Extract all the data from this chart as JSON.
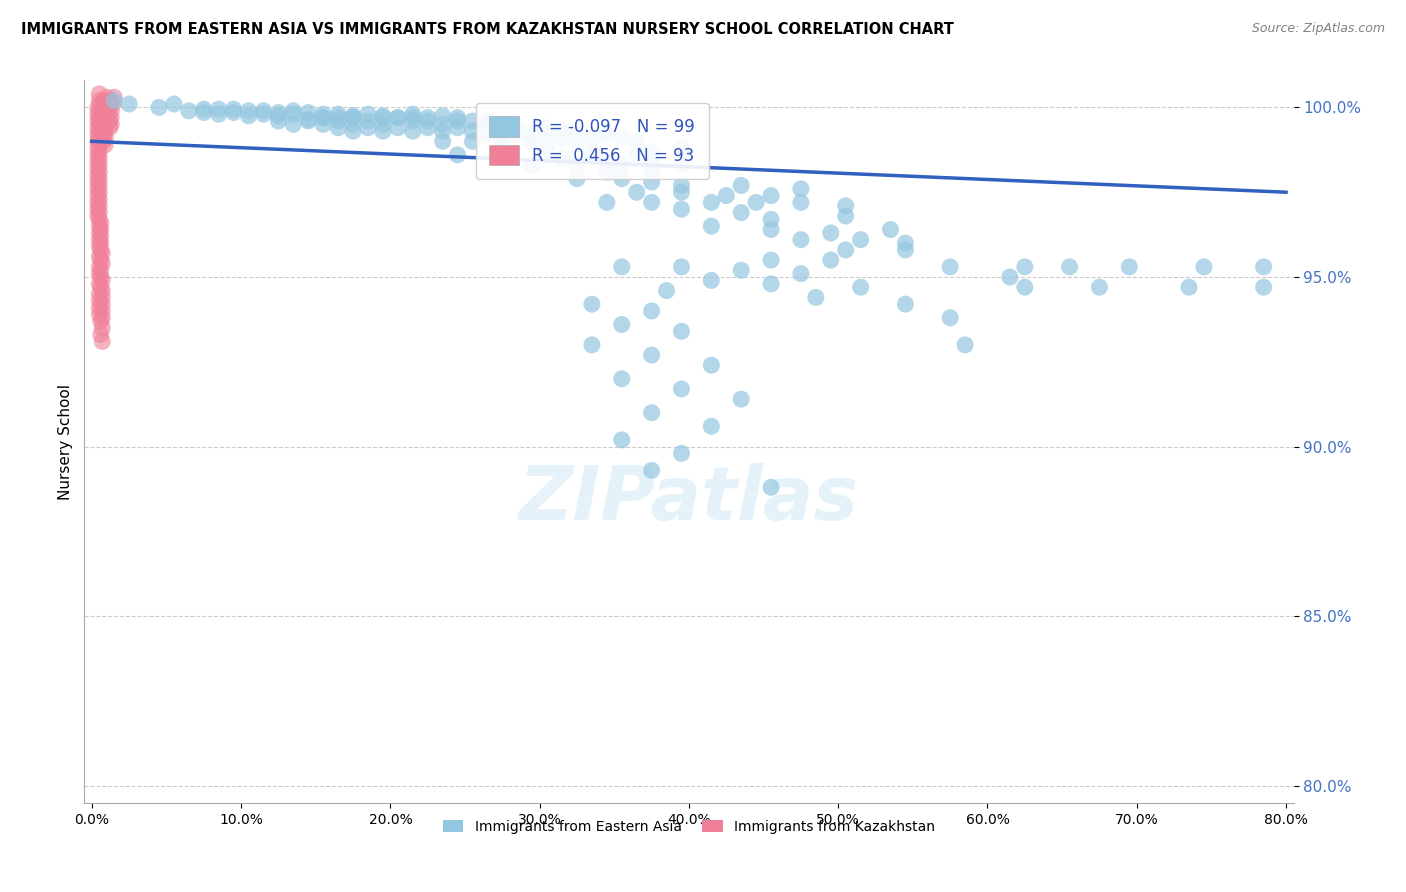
{
  "title": "IMMIGRANTS FROM EASTERN ASIA VS IMMIGRANTS FROM KAZAKHSTAN NURSERY SCHOOL CORRELATION CHART",
  "source": "Source: ZipAtlas.com",
  "ylabel": "Nursery School",
  "legend_label1": "Immigrants from Eastern Asia",
  "legend_label2": "Immigrants from Kazakhstan",
  "R1": -0.097,
  "N1": 99,
  "R2": 0.456,
  "N2": 93,
  "color_blue": "#93C6E0",
  "color_pink": "#F08098",
  "trendline_color": "#3060C0",
  "xlim": [
    -0.005,
    0.805
  ],
  "ylim": [
    0.795,
    1.008
  ],
  "xtick_labels": [
    "0.0%",
    "10.0%",
    "20.0%",
    "30.0%",
    "40.0%",
    "50.0%",
    "60.0%",
    "70.0%",
    "80.0%"
  ],
  "ytick_labels": [
    "80.0%",
    "85.0%",
    "90.0%",
    "95.0%",
    "100.0%"
  ],
  "ytick_values": [
    0.8,
    0.85,
    0.9,
    0.95,
    1.0
  ],
  "xtick_values": [
    0.0,
    0.1,
    0.2,
    0.3,
    0.4,
    0.5,
    0.6,
    0.7,
    0.8
  ],
  "watermark": "ZIPatlas",
  "trendline_x": [
    0.0,
    0.8
  ],
  "trendline_y": [
    0.99,
    0.975
  ],
  "blue_dots": [
    [
      0.015,
      1.002
    ],
    [
      0.025,
      1.001
    ],
    [
      0.055,
      1.001
    ],
    [
      0.045,
      1.0
    ],
    [
      0.075,
      0.9995
    ],
    [
      0.085,
      0.9995
    ],
    [
      0.095,
      0.9995
    ],
    [
      0.065,
      0.999
    ],
    [
      0.105,
      0.999
    ],
    [
      0.075,
      0.9985
    ],
    [
      0.115,
      0.999
    ],
    [
      0.125,
      0.9985
    ],
    [
      0.135,
      0.999
    ],
    [
      0.085,
      0.998
    ],
    [
      0.095,
      0.9985
    ],
    [
      0.115,
      0.998
    ],
    [
      0.145,
      0.9985
    ],
    [
      0.155,
      0.998
    ],
    [
      0.105,
      0.9975
    ],
    [
      0.125,
      0.9975
    ],
    [
      0.135,
      0.998
    ],
    [
      0.165,
      0.998
    ],
    [
      0.175,
      0.9975
    ],
    [
      0.185,
      0.998
    ],
    [
      0.155,
      0.997
    ],
    [
      0.165,
      0.997
    ],
    [
      0.175,
      0.997
    ],
    [
      0.195,
      0.9975
    ],
    [
      0.205,
      0.997
    ],
    [
      0.215,
      0.998
    ],
    [
      0.145,
      0.9965
    ],
    [
      0.155,
      0.997
    ],
    [
      0.175,
      0.997
    ],
    [
      0.195,
      0.997
    ],
    [
      0.215,
      0.997
    ],
    [
      0.225,
      0.997
    ],
    [
      0.235,
      0.9975
    ],
    [
      0.245,
      0.997
    ],
    [
      0.125,
      0.996
    ],
    [
      0.145,
      0.996
    ],
    [
      0.165,
      0.996
    ],
    [
      0.185,
      0.996
    ],
    [
      0.205,
      0.997
    ],
    [
      0.225,
      0.996
    ],
    [
      0.245,
      0.996
    ],
    [
      0.265,
      0.996
    ],
    [
      0.135,
      0.995
    ],
    [
      0.155,
      0.995
    ],
    [
      0.175,
      0.995
    ],
    [
      0.195,
      0.995
    ],
    [
      0.215,
      0.996
    ],
    [
      0.235,
      0.995
    ],
    [
      0.255,
      0.996
    ],
    [
      0.275,
      0.995
    ],
    [
      0.165,
      0.994
    ],
    [
      0.185,
      0.994
    ],
    [
      0.205,
      0.994
    ],
    [
      0.225,
      0.994
    ],
    [
      0.245,
      0.994
    ],
    [
      0.265,
      0.995
    ],
    [
      0.285,
      0.994
    ],
    [
      0.305,
      0.994
    ],
    [
      0.175,
      0.993
    ],
    [
      0.195,
      0.993
    ],
    [
      0.215,
      0.993
    ],
    [
      0.235,
      0.993
    ],
    [
      0.255,
      0.993
    ],
    [
      0.275,
      0.993
    ],
    [
      0.295,
      0.993
    ],
    [
      0.315,
      0.993
    ],
    [
      0.265,
      0.992
    ],
    [
      0.285,
      0.992
    ],
    [
      0.305,
      0.992
    ],
    [
      0.325,
      0.992
    ],
    [
      0.345,
      0.992
    ],
    [
      0.275,
      0.991
    ],
    [
      0.295,
      0.991
    ],
    [
      0.315,
      0.991
    ],
    [
      0.335,
      0.991
    ],
    [
      0.355,
      0.991
    ],
    [
      0.235,
      0.99
    ],
    [
      0.255,
      0.99
    ],
    [
      0.275,
      0.99
    ],
    [
      0.295,
      0.99
    ],
    [
      0.325,
      0.99
    ],
    [
      0.365,
      0.99
    ],
    [
      0.275,
      0.988
    ],
    [
      0.305,
      0.988
    ],
    [
      0.335,
      0.987
    ],
    [
      0.375,
      0.987
    ],
    [
      0.395,
      0.988
    ],
    [
      0.245,
      0.986
    ],
    [
      0.275,
      0.986
    ],
    [
      0.305,
      0.986
    ],
    [
      0.335,
      0.986
    ],
    [
      0.365,
      0.986
    ],
    [
      0.315,
      0.985
    ],
    [
      0.345,
      0.984
    ],
    [
      0.375,
      0.984
    ],
    [
      0.295,
      0.983
    ],
    [
      0.325,
      0.983
    ],
    [
      0.355,
      0.983
    ],
    [
      0.395,
      0.983
    ],
    [
      0.345,
      0.981
    ],
    [
      0.375,
      0.981
    ],
    [
      0.325,
      0.979
    ],
    [
      0.355,
      0.979
    ],
    [
      0.375,
      0.978
    ],
    [
      0.395,
      0.977
    ],
    [
      0.435,
      0.977
    ],
    [
      0.475,
      0.976
    ],
    [
      0.365,
      0.975
    ],
    [
      0.395,
      0.975
    ],
    [
      0.425,
      0.974
    ],
    [
      0.455,
      0.974
    ],
    [
      0.345,
      0.972
    ],
    [
      0.375,
      0.972
    ],
    [
      0.415,
      0.972
    ],
    [
      0.445,
      0.972
    ],
    [
      0.475,
      0.972
    ],
    [
      0.505,
      0.971
    ],
    [
      0.395,
      0.97
    ],
    [
      0.435,
      0.969
    ],
    [
      0.455,
      0.967
    ],
    [
      0.505,
      0.968
    ],
    [
      0.415,
      0.965
    ],
    [
      0.455,
      0.964
    ],
    [
      0.495,
      0.963
    ],
    [
      0.535,
      0.964
    ],
    [
      0.475,
      0.961
    ],
    [
      0.515,
      0.961
    ],
    [
      0.545,
      0.96
    ],
    [
      0.505,
      0.958
    ],
    [
      0.545,
      0.958
    ],
    [
      0.455,
      0.955
    ],
    [
      0.495,
      0.955
    ],
    [
      0.355,
      0.953
    ],
    [
      0.395,
      0.953
    ],
    [
      0.435,
      0.952
    ],
    [
      0.475,
      0.951
    ],
    [
      0.415,
      0.949
    ],
    [
      0.455,
      0.948
    ],
    [
      0.385,
      0.946
    ],
    [
      0.485,
      0.944
    ],
    [
      0.335,
      0.942
    ],
    [
      0.375,
      0.94
    ],
    [
      0.355,
      0.936
    ],
    [
      0.395,
      0.934
    ],
    [
      0.335,
      0.93
    ],
    [
      0.375,
      0.927
    ],
    [
      0.415,
      0.924
    ],
    [
      0.355,
      0.92
    ],
    [
      0.395,
      0.917
    ],
    [
      0.435,
      0.914
    ],
    [
      0.375,
      0.91
    ],
    [
      0.415,
      0.906
    ],
    [
      0.355,
      0.902
    ],
    [
      0.395,
      0.898
    ],
    [
      0.375,
      0.893
    ],
    [
      0.455,
      0.888
    ],
    [
      0.575,
      0.953
    ],
    [
      0.515,
      0.947
    ],
    [
      0.625,
      0.947
    ],
    [
      0.675,
      0.947
    ],
    [
      0.735,
      0.947
    ],
    [
      0.785,
      0.947
    ],
    [
      0.545,
      0.942
    ],
    [
      0.575,
      0.938
    ],
    [
      0.585,
      0.93
    ],
    [
      0.615,
      0.95
    ],
    [
      0.625,
      0.953
    ],
    [
      0.655,
      0.953
    ],
    [
      0.695,
      0.953
    ],
    [
      0.745,
      0.953
    ],
    [
      0.785,
      0.953
    ]
  ],
  "pink_dots": [
    [
      0.005,
      1.004
    ],
    [
      0.01,
      1.003
    ],
    [
      0.015,
      1.003
    ],
    [
      0.005,
      1.002
    ],
    [
      0.008,
      1.002
    ],
    [
      0.012,
      1.002
    ],
    [
      0.006,
      1.001
    ],
    [
      0.01,
      1.001
    ],
    [
      0.014,
      1.001
    ],
    [
      0.004,
      1.0
    ],
    [
      0.008,
      1.0
    ],
    [
      0.012,
      1.0
    ],
    [
      0.005,
      0.999
    ],
    [
      0.009,
      0.999
    ],
    [
      0.013,
      0.999
    ],
    [
      0.004,
      0.998
    ],
    [
      0.007,
      0.998
    ],
    [
      0.011,
      0.998
    ],
    [
      0.005,
      0.997
    ],
    [
      0.009,
      0.997
    ],
    [
      0.013,
      0.997
    ],
    [
      0.004,
      0.996
    ],
    [
      0.008,
      0.996
    ],
    [
      0.012,
      0.996
    ],
    [
      0.005,
      0.995
    ],
    [
      0.009,
      0.995
    ],
    [
      0.013,
      0.995
    ],
    [
      0.004,
      0.994
    ],
    [
      0.008,
      0.994
    ],
    [
      0.012,
      0.994
    ],
    [
      0.005,
      0.993
    ],
    [
      0.009,
      0.993
    ],
    [
      0.004,
      0.992
    ],
    [
      0.008,
      0.992
    ],
    [
      0.005,
      0.991
    ],
    [
      0.009,
      0.991
    ],
    [
      0.004,
      0.99
    ],
    [
      0.008,
      0.99
    ],
    [
      0.005,
      0.989
    ],
    [
      0.009,
      0.989
    ],
    [
      0.004,
      0.988
    ],
    [
      0.005,
      0.987
    ],
    [
      0.004,
      0.986
    ],
    [
      0.005,
      0.985
    ],
    [
      0.004,
      0.984
    ],
    [
      0.005,
      0.983
    ],
    [
      0.004,
      0.982
    ],
    [
      0.005,
      0.981
    ],
    [
      0.004,
      0.98
    ],
    [
      0.005,
      0.979
    ],
    [
      0.004,
      0.978
    ],
    [
      0.005,
      0.977
    ],
    [
      0.004,
      0.976
    ],
    [
      0.005,
      0.975
    ],
    [
      0.004,
      0.974
    ],
    [
      0.005,
      0.973
    ],
    [
      0.004,
      0.972
    ],
    [
      0.005,
      0.971
    ],
    [
      0.004,
      0.97
    ],
    [
      0.005,
      0.969
    ],
    [
      0.004,
      0.968
    ],
    [
      0.005,
      0.967
    ],
    [
      0.006,
      0.966
    ],
    [
      0.005,
      0.965
    ],
    [
      0.006,
      0.964
    ],
    [
      0.005,
      0.963
    ],
    [
      0.006,
      0.962
    ],
    [
      0.005,
      0.961
    ],
    [
      0.006,
      0.96
    ],
    [
      0.005,
      0.959
    ],
    [
      0.006,
      0.958
    ],
    [
      0.007,
      0.957
    ],
    [
      0.005,
      0.956
    ],
    [
      0.006,
      0.955
    ],
    [
      0.007,
      0.954
    ],
    [
      0.005,
      0.953
    ],
    [
      0.006,
      0.952
    ],
    [
      0.005,
      0.951
    ],
    [
      0.006,
      0.95
    ],
    [
      0.007,
      0.949
    ],
    [
      0.005,
      0.948
    ],
    [
      0.006,
      0.947
    ],
    [
      0.007,
      0.946
    ],
    [
      0.005,
      0.945
    ],
    [
      0.007,
      0.944
    ],
    [
      0.005,
      0.943
    ],
    [
      0.007,
      0.942
    ],
    [
      0.005,
      0.941
    ],
    [
      0.007,
      0.94
    ],
    [
      0.005,
      0.939
    ],
    [
      0.007,
      0.938
    ],
    [
      0.006,
      0.937
    ],
    [
      0.007,
      0.935
    ],
    [
      0.006,
      0.933
    ],
    [
      0.007,
      0.931
    ]
  ]
}
